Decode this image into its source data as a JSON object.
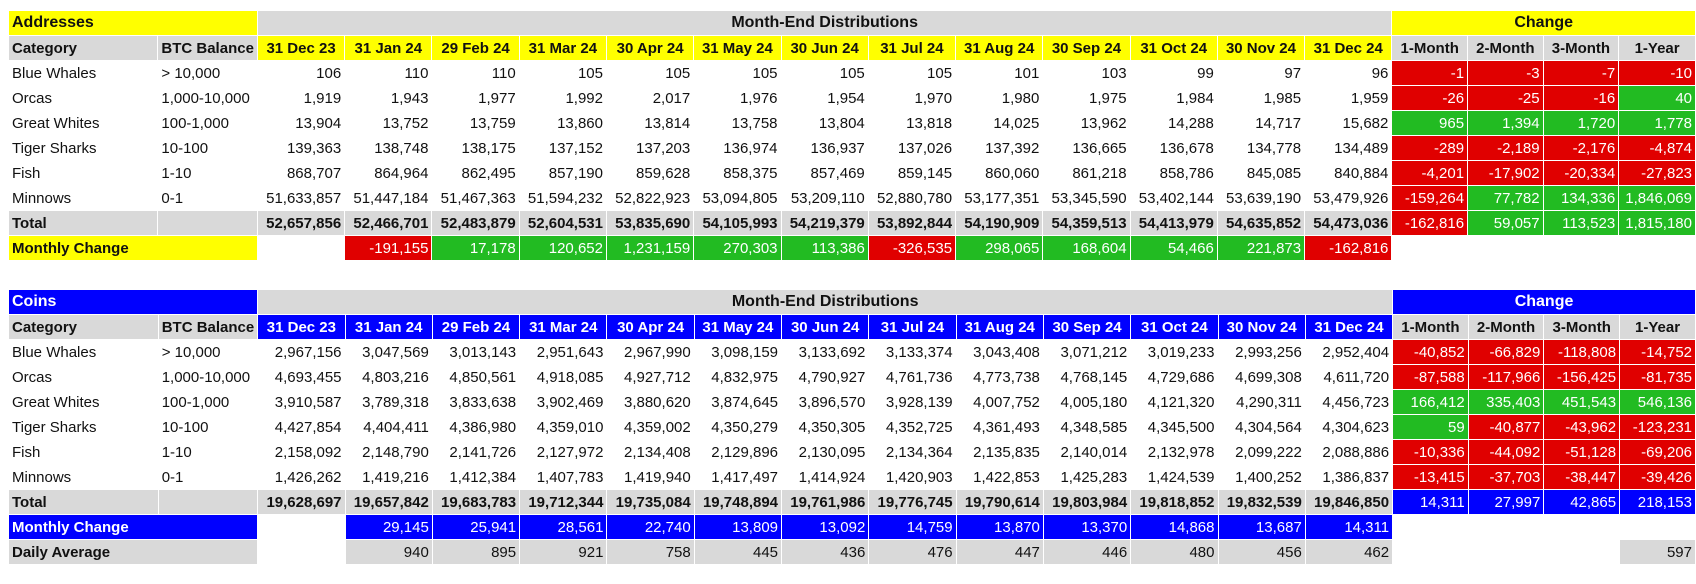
{
  "colors": {
    "yellow": "#ffff00",
    "blue": "#0000ff",
    "grey": "#d9d9d9",
    "red": "#e00000",
    "green": "#22bb22"
  },
  "dates": [
    "31 Dec 23",
    "31 Jan 24",
    "29 Feb 24",
    "31 Mar 24",
    "30 Apr 24",
    "31 May 24",
    "30 Jun 24",
    "31 Jul 24",
    "31 Aug 24",
    "30 Sep 24",
    "31 Oct 24",
    "30 Nov 24",
    "31 Dec 24"
  ],
  "change_headers": [
    "1-Month",
    "2-Month",
    "3-Month",
    "1-Year"
  ],
  "addresses": {
    "title": "Addresses",
    "center_title": "Month-End Distributions",
    "change_title": "Change",
    "col_category": "Category",
    "col_btc": "BTC Balance",
    "rows": [
      {
        "category": "Blue Whales",
        "btc": "> 10,000",
        "values": [
          "106",
          "110",
          "110",
          "105",
          "105",
          "105",
          "105",
          "105",
          "101",
          "103",
          "99",
          "97",
          "96"
        ],
        "changes": [
          "-1",
          "-3",
          "-7",
          "-10"
        ],
        "change_signs": [
          "neg",
          "neg",
          "neg",
          "neg"
        ]
      },
      {
        "category": "Orcas",
        "btc": "1,000-10,000",
        "values": [
          "1,919",
          "1,943",
          "1,977",
          "1,992",
          "2,017",
          "1,976",
          "1,954",
          "1,970",
          "1,980",
          "1,975",
          "1,984",
          "1,985",
          "1,959"
        ],
        "changes": [
          "-26",
          "-25",
          "-16",
          "40"
        ],
        "change_signs": [
          "neg",
          "neg",
          "neg",
          "pos"
        ]
      },
      {
        "category": "Great Whites",
        "btc": "100-1,000",
        "values": [
          "13,904",
          "13,752",
          "13,759",
          "13,860",
          "13,814",
          "13,758",
          "13,804",
          "13,818",
          "14,025",
          "13,962",
          "14,288",
          "14,717",
          "15,682"
        ],
        "changes": [
          "965",
          "1,394",
          "1,720",
          "1,778"
        ],
        "change_signs": [
          "pos",
          "pos",
          "pos",
          "pos"
        ]
      },
      {
        "category": "Tiger Sharks",
        "btc": "10-100",
        "values": [
          "139,363",
          "138,748",
          "138,175",
          "137,152",
          "137,203",
          "136,974",
          "136,937",
          "137,026",
          "137,392",
          "136,665",
          "136,678",
          "134,778",
          "134,489"
        ],
        "changes": [
          "-289",
          "-2,189",
          "-2,176",
          "-4,874"
        ],
        "change_signs": [
          "neg",
          "neg",
          "neg",
          "neg"
        ]
      },
      {
        "category": "Fish",
        "btc": "1-10",
        "values": [
          "868,707",
          "864,964",
          "862,495",
          "857,190",
          "859,628",
          "858,375",
          "857,469",
          "859,145",
          "860,060",
          "861,218",
          "858,786",
          "845,085",
          "840,884"
        ],
        "changes": [
          "-4,201",
          "-17,902",
          "-20,334",
          "-27,823"
        ],
        "change_signs": [
          "neg",
          "neg",
          "neg",
          "neg"
        ]
      },
      {
        "category": "Minnows",
        "btc": "0-1",
        "values": [
          "51,633,857",
          "51,447,184",
          "51,467,363",
          "51,594,232",
          "52,822,923",
          "53,094,805",
          "53,209,110",
          "52,880,780",
          "53,177,351",
          "53,345,590",
          "53,402,144",
          "53,639,190",
          "53,479,926"
        ],
        "changes": [
          "-159,264",
          "77,782",
          "134,336",
          "1,846,069"
        ],
        "change_signs": [
          "neg",
          "pos",
          "pos",
          "pos"
        ]
      }
    ],
    "total": {
      "label": "Total",
      "values": [
        "52,657,856",
        "52,466,701",
        "52,483,879",
        "52,604,531",
        "53,835,690",
        "54,105,993",
        "54,219,379",
        "53,892,844",
        "54,190,909",
        "54,359,513",
        "54,413,979",
        "54,635,852",
        "54,473,036"
      ],
      "changes": [
        "-162,816",
        "59,057",
        "113,523",
        "1,815,180"
      ],
      "change_signs": [
        "neg",
        "pos",
        "pos",
        "pos"
      ]
    },
    "monthly_change": {
      "label": "Monthly Change",
      "values": [
        "",
        "-191,155",
        "17,178",
        "120,652",
        "1,231,159",
        "270,303",
        "113,386",
        "-326,535",
        "298,065",
        "168,604",
        "54,466",
        "221,873",
        "-162,816"
      ],
      "signs": [
        "",
        "neg",
        "pos",
        "pos",
        "pos",
        "pos",
        "pos",
        "neg",
        "pos",
        "pos",
        "pos",
        "pos",
        "neg"
      ]
    }
  },
  "coins": {
    "title": "Coins",
    "center_title": "Month-End Distributions",
    "change_title": "Change",
    "col_category": "Category",
    "col_btc": "BTC Balance",
    "rows": [
      {
        "category": "Blue Whales",
        "btc": "> 10,000",
        "values": [
          "2,967,156",
          "3,047,569",
          "3,013,143",
          "2,951,643",
          "2,967,990",
          "3,098,159",
          "3,133,692",
          "3,133,374",
          "3,043,408",
          "3,071,212",
          "3,019,233",
          "2,993,256",
          "2,952,404"
        ],
        "changes": [
          "-40,852",
          "-66,829",
          "-118,808",
          "-14,752"
        ],
        "change_signs": [
          "neg",
          "neg",
          "neg",
          "neg"
        ]
      },
      {
        "category": "Orcas",
        "btc": "1,000-10,000",
        "values": [
          "4,693,455",
          "4,803,216",
          "4,850,561",
          "4,918,085",
          "4,927,712",
          "4,832,975",
          "4,790,927",
          "4,761,736",
          "4,773,738",
          "4,768,145",
          "4,729,686",
          "4,699,308",
          "4,611,720"
        ],
        "changes": [
          "-87,588",
          "-117,966",
          "-156,425",
          "-81,735"
        ],
        "change_signs": [
          "neg",
          "neg",
          "neg",
          "neg"
        ]
      },
      {
        "category": "Great Whites",
        "btc": "100-1,000",
        "values": [
          "3,910,587",
          "3,789,318",
          "3,833,638",
          "3,902,469",
          "3,880,620",
          "3,874,645",
          "3,896,570",
          "3,928,139",
          "4,007,752",
          "4,005,180",
          "4,121,320",
          "4,290,311",
          "4,456,723"
        ],
        "changes": [
          "166,412",
          "335,403",
          "451,543",
          "546,136"
        ],
        "change_signs": [
          "pos",
          "pos",
          "pos",
          "pos"
        ]
      },
      {
        "category": "Tiger Sharks",
        "btc": "10-100",
        "values": [
          "4,427,854",
          "4,404,411",
          "4,386,980",
          "4,359,010",
          "4,359,002",
          "4,350,279",
          "4,350,305",
          "4,352,725",
          "4,361,493",
          "4,348,585",
          "4,345,500",
          "4,304,564",
          "4,304,623"
        ],
        "changes": [
          "59",
          "-40,877",
          "-43,962",
          "-123,231"
        ],
        "change_signs": [
          "pos",
          "neg",
          "neg",
          "neg"
        ]
      },
      {
        "category": "Fish",
        "btc": "1-10",
        "values": [
          "2,158,092",
          "2,148,790",
          "2,141,726",
          "2,127,972",
          "2,134,408",
          "2,129,896",
          "2,130,095",
          "2,134,364",
          "2,135,835",
          "2,140,014",
          "2,132,978",
          "2,099,222",
          "2,088,886"
        ],
        "changes": [
          "-10,336",
          "-44,092",
          "-51,128",
          "-69,206"
        ],
        "change_signs": [
          "neg",
          "neg",
          "neg",
          "neg"
        ]
      },
      {
        "category": "Minnows",
        "btc": "0-1",
        "values": [
          "1,426,262",
          "1,419,216",
          "1,412,384",
          "1,407,783",
          "1,419,940",
          "1,417,497",
          "1,414,924",
          "1,420,903",
          "1,422,853",
          "1,425,283",
          "1,424,539",
          "1,400,252",
          "1,386,837"
        ],
        "changes": [
          "-13,415",
          "-37,703",
          "-38,447",
          "-39,426"
        ],
        "change_signs": [
          "neg",
          "neg",
          "neg",
          "neg"
        ]
      }
    ],
    "total": {
      "label": "Total",
      "values": [
        "19,628,697",
        "19,657,842",
        "19,683,783",
        "19,712,344",
        "19,735,084",
        "19,748,894",
        "19,761,986",
        "19,776,745",
        "19,790,614",
        "19,803,984",
        "19,818,852",
        "19,832,539",
        "19,846,850"
      ],
      "changes": [
        "14,311",
        "27,997",
        "42,865",
        "218,153"
      ],
      "change_signs": [
        "blue",
        "blue",
        "blue",
        "blue"
      ]
    },
    "monthly_change": {
      "label": "Monthly Change",
      "values": [
        "",
        "29,145",
        "25,941",
        "28,561",
        "22,740",
        "13,809",
        "13,092",
        "14,759",
        "13,870",
        "13,370",
        "14,868",
        "13,687",
        "14,311"
      ],
      "signs": [
        "",
        "blue",
        "blue",
        "blue",
        "blue",
        "blue",
        "blue",
        "blue",
        "blue",
        "blue",
        "blue",
        "blue",
        "blue"
      ]
    },
    "daily_average": {
      "label": "Daily Average",
      "values": [
        "",
        "940",
        "895",
        "921",
        "758",
        "445",
        "436",
        "476",
        "447",
        "446",
        "480",
        "456",
        "462"
      ],
      "year": "597"
    }
  }
}
